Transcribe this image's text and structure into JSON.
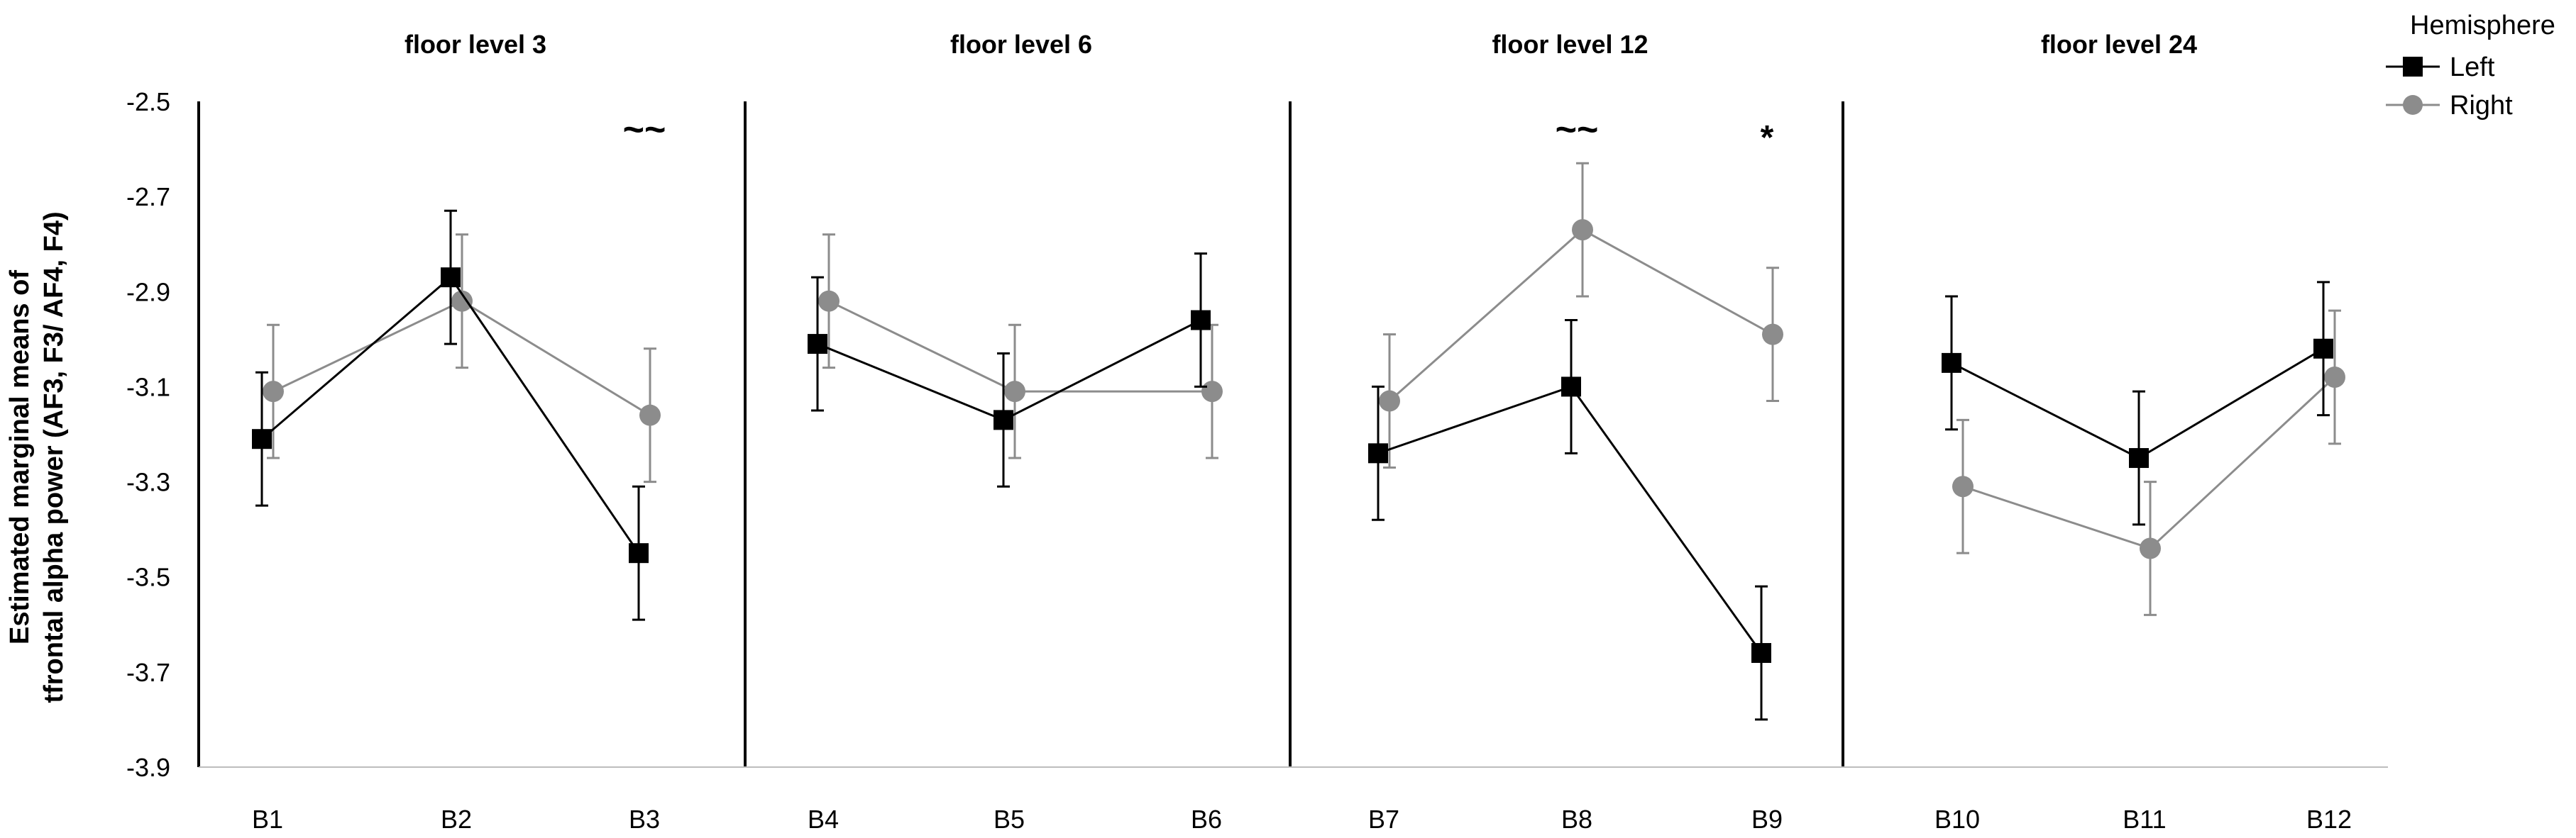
{
  "chart_data": {
    "type": "line",
    "ylabel_lines": [
      "Estimated marginal means of",
      "tfrontal alpha power (AF3, F3/ AF4, F4)"
    ],
    "ylim": [
      -3.9,
      -2.5
    ],
    "yticks": [
      -2.5,
      -2.7,
      -2.9,
      -3.1,
      -3.3,
      -3.5,
      -3.7,
      -3.9
    ],
    "ytick_labels": [
      "-2.5",
      "-2.7",
      "-2.9",
      "-3.1",
      "-3.3",
      "-3.5",
      "-3.7",
      "-3.9"
    ],
    "legend": {
      "title": "Hemisphere",
      "position": "top-right",
      "entries": [
        {
          "name": "Left",
          "color": "#000000",
          "marker": "square"
        },
        {
          "name": "Right",
          "color": "#8c8c8c",
          "marker": "circle"
        }
      ]
    },
    "series_styles": {
      "Left": {
        "color": "#000000",
        "marker": "square"
      },
      "Right": {
        "color": "#8c8c8c",
        "marker": "circle"
      }
    },
    "panels": [
      {
        "title": "floor level 3",
        "categories": [
          "B1",
          "B2",
          "B3"
        ],
        "series": [
          {
            "name": "Left",
            "values": [
              -3.21,
              -2.87,
              -3.45
            ],
            "err": [
              0.14,
              0.14,
              0.14
            ]
          },
          {
            "name": "Right",
            "values": [
              -3.11,
              -2.92,
              -3.16
            ],
            "err": [
              0.14,
              0.14,
              0.14
            ]
          }
        ],
        "annotations": [
          {
            "category": "B3",
            "text": "~~"
          }
        ]
      },
      {
        "title": "floor level 6",
        "categories": [
          "B4",
          "B5",
          "B6"
        ],
        "series": [
          {
            "name": "Left",
            "values": [
              -3.01,
              -3.17,
              -2.96
            ],
            "err": [
              0.14,
              0.14,
              0.14
            ]
          },
          {
            "name": "Right",
            "values": [
              -2.92,
              -3.11,
              -3.11
            ],
            "err": [
              0.14,
              0.14,
              0.14
            ]
          }
        ],
        "annotations": []
      },
      {
        "title": "floor level 12",
        "categories": [
          "B7",
          "B8",
          "B9"
        ],
        "series": [
          {
            "name": "Left",
            "values": [
              -3.24,
              -3.1,
              -3.66
            ],
            "err": [
              0.14,
              0.14,
              0.14
            ]
          },
          {
            "name": "Right",
            "values": [
              -3.13,
              -2.77,
              -2.99
            ],
            "err": [
              0.14,
              0.14,
              0.14
            ]
          }
        ],
        "annotations": [
          {
            "category": "B8",
            "text": "~~"
          },
          {
            "category": "B9",
            "text": "*"
          }
        ]
      },
      {
        "title": "floor level 24",
        "categories": [
          "B10",
          "B11",
          "B12"
        ],
        "series": [
          {
            "name": "Left",
            "values": [
              -3.05,
              -3.25,
              -3.02
            ],
            "err": [
              0.14,
              0.14,
              0.14
            ]
          },
          {
            "name": "Right",
            "values": [
              -3.31,
              -3.44,
              -3.08
            ],
            "err": [
              0.14,
              0.14,
              0.14
            ]
          }
        ],
        "annotations": []
      }
    ]
  }
}
